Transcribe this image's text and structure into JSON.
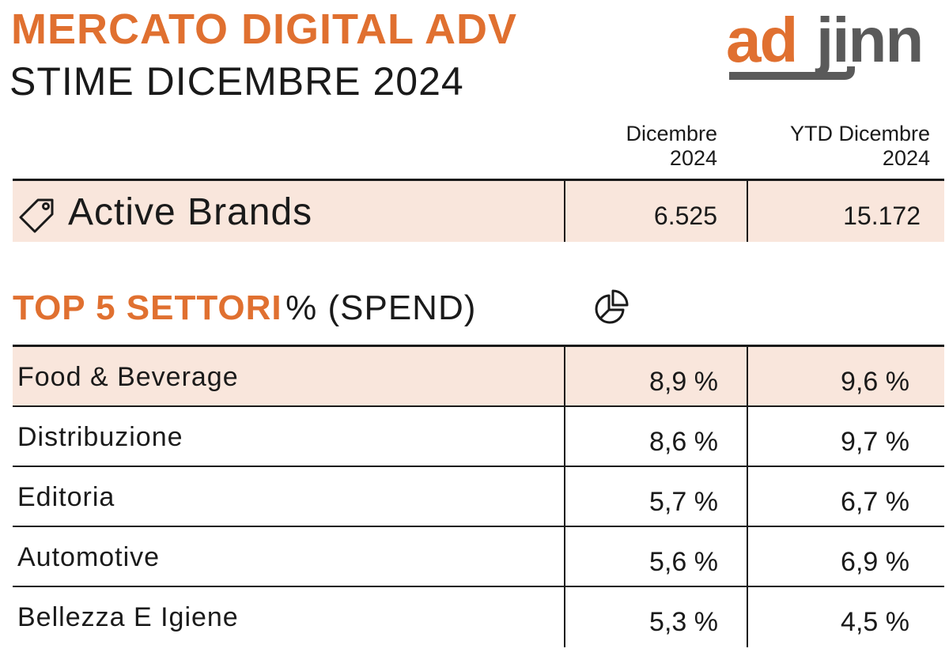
{
  "header": {
    "title": "MERCATO DIGITAL ADV",
    "subtitle": "STIME DICEMBRE 2024",
    "logo_text_orange": "ad",
    "logo_text_gray": "jinn"
  },
  "columns": {
    "col1_line1": "Dicembre",
    "col1_line2": "2024",
    "col2_line1": "YTD Dicembre",
    "col2_line2": "2024"
  },
  "active_brands": {
    "label": "Active Brands",
    "icon": "tag-icon",
    "dicembre": "6.525",
    "ytd": "15.172"
  },
  "section": {
    "title_strong": "TOP 5 SETTORI",
    "title_rest": "% (SPEND)",
    "icon": "pie-chart-icon"
  },
  "sectors": [
    {
      "name": "Food & Beverage",
      "dicembre": "8,9  %",
      "ytd": "9,6 %"
    },
    {
      "name": "Distribuzione",
      "dicembre": "8,6  %",
      "ytd": "9,7 %"
    },
    {
      "name": "Editoria",
      "dicembre": "5,7  %",
      "ytd": "6,7 %"
    },
    {
      "name": "Automotive",
      "dicembre": "5,6  %",
      "ytd": "6,9 %"
    },
    {
      "name": "Bellezza E Igiene",
      "dicembre": "5,3  %",
      "ytd": "4,5 %"
    }
  ],
  "colors": {
    "accent": "#e07030",
    "text": "#1a1a1a",
    "shade": "#f9e6dc",
    "logo_gray": "#5a5a5a"
  }
}
